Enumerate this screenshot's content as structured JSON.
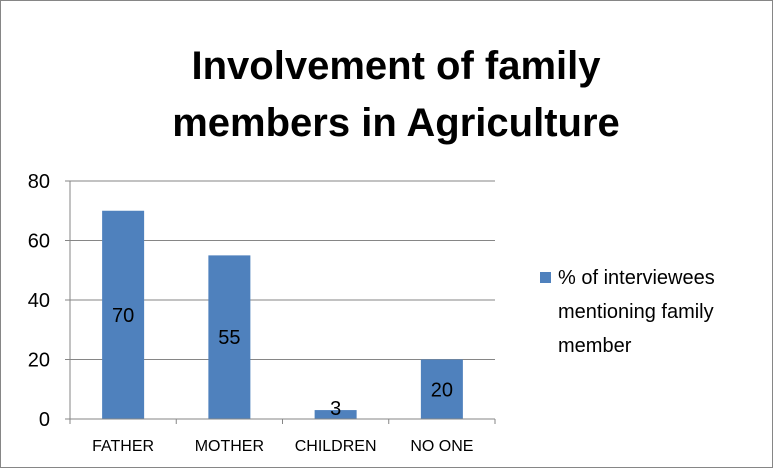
{
  "chart_data": {
    "type": "bar",
    "title": "Involvement of family members in Agriculture",
    "title_lines": [
      "Involvement of family",
      "members in Agriculture"
    ],
    "categories": [
      "FATHER",
      "MOTHER",
      "CHILDREN",
      "NO ONE"
    ],
    "series": [
      {
        "name": "% of interviewees mentioning family member",
        "name_lines": [
          "% of interviewees",
          "mentioning family",
          "member"
        ],
        "values": [
          70,
          55,
          3,
          20
        ],
        "color": "#4f81bd"
      }
    ],
    "ylim": [
      0,
      80
    ],
    "yticks": [
      0,
      20,
      40,
      60,
      80
    ],
    "grid": true,
    "legend_position": "right",
    "data_labels": true
  },
  "colors": {
    "bar": "#4f81bd",
    "gridline": "#868686",
    "frame": "#868686",
    "text": "#000000"
  }
}
